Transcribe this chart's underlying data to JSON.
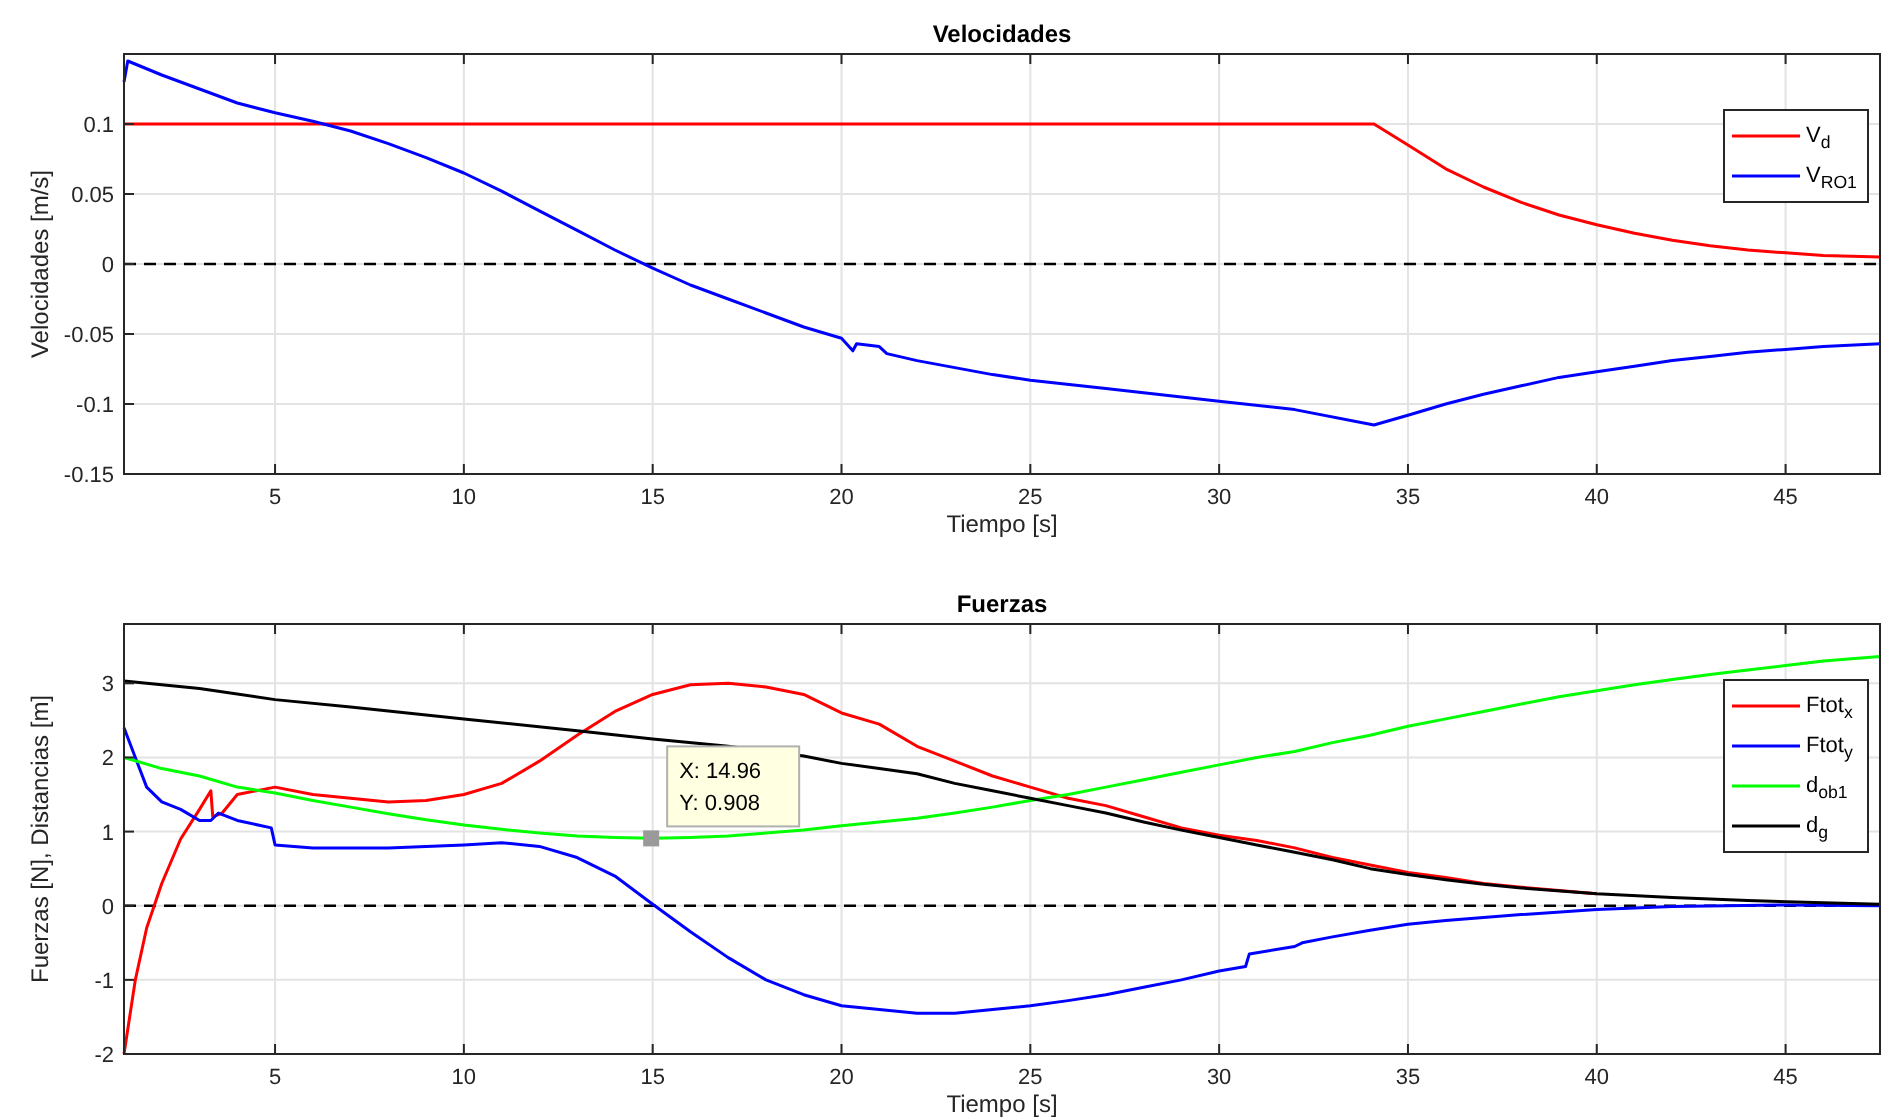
{
  "chart_data": [
    {
      "type": "line",
      "title": "Velocidades",
      "xlabel": "Tiempo [s]",
      "ylabel": "Velocidades [m/s]",
      "xlim": [
        1,
        47.5
      ],
      "xticks": [
        5,
        10,
        15,
        20,
        25,
        30,
        35,
        40,
        45
      ],
      "ylim": [
        -0.15,
        0.15
      ],
      "yticks": [
        -0.15,
        -0.1,
        -0.05,
        0,
        0.05,
        0.1
      ],
      "grid": true,
      "legend": "top right",
      "ref_lines": [
        {
          "axis": "y",
          "value": 0,
          "color": "#000000",
          "line_style": "dashed"
        }
      ],
      "series": [
        {
          "name": "V$_{d}$",
          "color": "#ff0000",
          "x": [
            1,
            34.1,
            35,
            36,
            37,
            38,
            39,
            40,
            41,
            42,
            43,
            44,
            45,
            46,
            47.5
          ],
          "values": [
            0.1,
            0.1,
            0.085,
            0.068,
            0.055,
            0.044,
            0.035,
            0.028,
            0.022,
            0.017,
            0.013,
            0.01,
            0.008,
            0.006,
            0.005
          ]
        },
        {
          "name": "V$_{RO1}$",
          "color": "#0000ff",
          "x": [
            1,
            1.1,
            2,
            3,
            4,
            5,
            6,
            7,
            8,
            9,
            10,
            11,
            12,
            13,
            14,
            15,
            16,
            17,
            18,
            19,
            20,
            20.3,
            20.4,
            21,
            21.2,
            22,
            23,
            24,
            25,
            27,
            30,
            32,
            34.1,
            35,
            36,
            37,
            38,
            39,
            40,
            41,
            42,
            43,
            44,
            45,
            46,
            47.5
          ],
          "values": [
            0.13,
            0.145,
            0.135,
            0.125,
            0.115,
            0.108,
            0.102,
            0.095,
            0.086,
            0.076,
            0.065,
            0.052,
            0.038,
            0.024,
            0.01,
            -0.003,
            -0.015,
            -0.025,
            -0.035,
            -0.045,
            -0.053,
            -0.062,
            -0.057,
            -0.059,
            -0.064,
            -0.069,
            -0.074,
            -0.079,
            -0.083,
            -0.089,
            -0.098,
            -0.104,
            -0.115,
            -0.108,
            -0.1,
            -0.093,
            -0.087,
            -0.081,
            -0.077,
            -0.073,
            -0.069,
            -0.066,
            -0.063,
            -0.061,
            -0.059,
            -0.057
          ]
        }
      ]
    },
    {
      "type": "line",
      "title": "Fuerzas",
      "xlabel": "Tiempo [s]",
      "ylabel": "Fuerzas [N], Distancias [m]",
      "xlim": [
        1,
        47.5
      ],
      "xticks": [
        5,
        10,
        15,
        20,
        25,
        30,
        35,
        40,
        45
      ],
      "ylim": [
        -2,
        3.8
      ],
      "yticks": [
        -2,
        -1,
        0,
        1,
        2,
        3
      ],
      "grid": true,
      "legend": "top right",
      "ref_lines": [
        {
          "axis": "y",
          "value": 0,
          "color": "#000000",
          "line_style": "dashed"
        }
      ],
      "annotations": [
        {
          "text": "X: 14.96\nY: 0.908",
          "x": 14.96,
          "y": 0.908
        }
      ],
      "series": [
        {
          "name": "Ftot$_{x}$",
          "color": "#ff0000",
          "x": [
            1,
            1.3,
            1.6,
            2,
            2.5,
            3,
            3.3,
            3.35,
            3.6,
            4,
            5,
            6,
            7,
            8,
            9,
            10,
            11,
            12,
            13,
            14,
            15,
            16,
            17,
            18,
            19,
            20,
            21,
            22,
            23,
            24,
            25,
            26,
            27,
            28,
            29,
            30,
            31,
            32,
            33,
            34,
            35,
            36,
            37,
            38,
            40
          ],
          "values": [
            -2,
            -1,
            -0.3,
            0.3,
            0.9,
            1.3,
            1.55,
            1.2,
            1.25,
            1.5,
            1.6,
            1.5,
            1.45,
            1.4,
            1.42,
            1.5,
            1.65,
            1.95,
            2.3,
            2.62,
            2.85,
            2.98,
            3,
            2.95,
            2.85,
            2.6,
            2.45,
            2.15,
            1.95,
            1.75,
            1.6,
            1.45,
            1.35,
            1.2,
            1.05,
            0.95,
            0.88,
            0.78,
            0.65,
            0.55,
            0.45,
            0.38,
            0.3,
            0.25,
            0.16
          ]
        },
        {
          "name": "Ftot$_{y}$",
          "color": "#0000ff",
          "x": [
            1,
            1.3,
            1.6,
            2,
            2.5,
            3,
            3.3,
            3.5,
            4,
            4.9,
            5,
            6,
            8,
            10,
            11,
            12,
            13,
            14,
            15,
            16,
            17,
            18,
            19,
            20,
            21,
            22,
            23,
            24,
            25,
            26,
            27,
            28,
            29,
            30,
            30.7,
            30.8,
            32,
            32.2,
            33,
            34,
            35,
            36,
            38,
            40,
            42,
            45,
            47.5
          ],
          "values": [
            2.4,
            2,
            1.6,
            1.4,
            1.3,
            1.15,
            1.15,
            1.25,
            1.15,
            1.05,
            0.82,
            0.78,
            0.78,
            0.82,
            0.85,
            0.8,
            0.65,
            0.4,
            0.02,
            -0.35,
            -0.7,
            -1,
            -1.2,
            -1.35,
            -1.4,
            -1.45,
            -1.45,
            -1.4,
            -1.35,
            -1.28,
            -1.2,
            -1.1,
            -1,
            -0.88,
            -0.82,
            -0.65,
            -0.55,
            -0.5,
            -0.42,
            -0.33,
            -0.25,
            -0.2,
            -0.12,
            -0.05,
            -0.01,
            0.01,
            0
          ]
        },
        {
          "name": "d$_{ob1}$",
          "color": "#00ff00",
          "x": [
            1,
            2,
            3,
            4,
            5,
            6,
            7,
            8,
            9,
            10,
            11,
            12,
            13,
            14,
            15,
            16,
            17,
            18,
            19,
            20,
            21,
            22,
            23,
            24,
            25,
            26,
            27,
            28,
            29,
            30,
            31,
            32,
            33,
            34,
            35,
            36,
            37,
            38,
            39,
            40,
            41,
            42,
            43,
            44,
            45,
            46,
            47.5
          ],
          "values": [
            2,
            1.85,
            1.75,
            1.6,
            1.52,
            1.42,
            1.33,
            1.24,
            1.16,
            1.09,
            1.03,
            0.98,
            0.94,
            0.92,
            0.91,
            0.92,
            0.94,
            0.98,
            1.02,
            1.08,
            1.13,
            1.18,
            1.25,
            1.33,
            1.42,
            1.5,
            1.6,
            1.7,
            1.8,
            1.9,
            2,
            2.08,
            2.2,
            2.3,
            2.42,
            2.52,
            2.62,
            2.72,
            2.82,
            2.9,
            2.98,
            3.05,
            3.12,
            3.18,
            3.24,
            3.3,
            3.36
          ]
        },
        {
          "name": "d$_{g}$",
          "color": "#000000",
          "x": [
            1,
            2,
            3,
            5,
            7,
            10,
            13,
            15,
            17,
            19,
            20,
            21,
            22,
            23,
            24,
            25,
            26,
            27,
            28,
            29,
            30,
            31,
            32,
            33,
            34,
            35,
            36,
            37,
            38,
            40,
            42,
            44,
            46,
            47.5
          ],
          "values": [
            3.03,
            2.98,
            2.93,
            2.78,
            2.68,
            2.52,
            2.36,
            2.25,
            2.15,
            2.02,
            1.92,
            1.85,
            1.78,
            1.65,
            1.55,
            1.45,
            1.35,
            1.25,
            1.13,
            1.02,
            0.92,
            0.82,
            0.72,
            0.62,
            0.5,
            0.42,
            0.35,
            0.29,
            0.24,
            0.16,
            0.11,
            0.07,
            0.04,
            0.02
          ]
        }
      ]
    }
  ]
}
